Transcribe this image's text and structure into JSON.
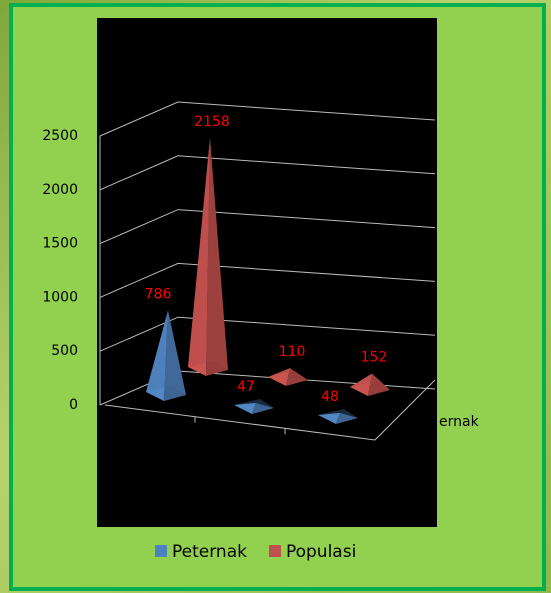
{
  "chart_data": {
    "type": "pyramid3d",
    "categories": [
      null,
      null,
      null
    ],
    "series": [
      {
        "name": "Peternak",
        "color": "#4f81bd",
        "values": [
          786,
          47,
          48
        ]
      },
      {
        "name": "Populasi",
        "color": "#c0504d",
        "values": [
          2158,
          110,
          152
        ]
      }
    ],
    "ylim": [
      0,
      2500
    ],
    "yticks": [
      0,
      500,
      1000,
      1500,
      2000,
      2500
    ],
    "grid": true,
    "depth_label": "ernak",
    "legend": "bottom"
  }
}
